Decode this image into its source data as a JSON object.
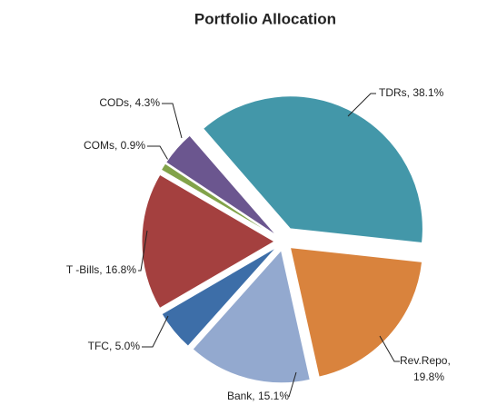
{
  "chart_data": {
    "type": "pie",
    "title": "Portfolio Allocation",
    "values": [
      38.1,
      19.8,
      15.1,
      5.0,
      16.8,
      0.9,
      4.3
    ],
    "value_labels": [
      "TDRs, 38.1%",
      "Rev.Repo,\n19.8%",
      "Bank, 15.1%",
      "TFC, 5.0%",
      "T -Bills, 16.8%",
      "COMs, 0.9%",
      "CODs, 4.3%"
    ],
    "colors": [
      "#4397a9",
      "#d9833d",
      "#93a9cf",
      "#3d6ea8",
      "#a4403f",
      "#82a34a",
      "#6b568f"
    ]
  }
}
